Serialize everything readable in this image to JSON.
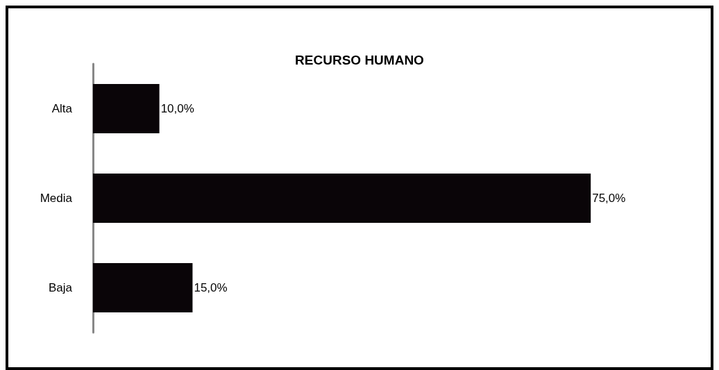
{
  "chart_data": {
    "type": "bar",
    "orientation": "horizontal",
    "title": "RECURSO HUMANO",
    "categories": [
      "Alta",
      "Media",
      "Baja"
    ],
    "values": [
      10,
      75,
      15
    ],
    "value_labels": [
      "10,0%",
      "75,0%",
      "15,0%"
    ],
    "color": "#0a0508",
    "tick_labels": "y"
  }
}
